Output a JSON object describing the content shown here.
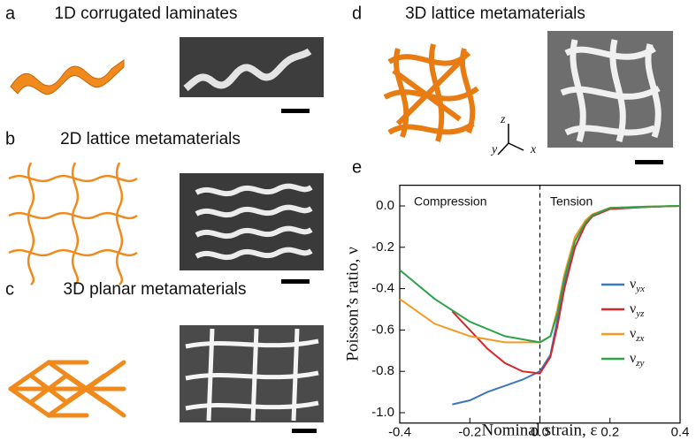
{
  "panels": [
    {
      "label": "a",
      "title": "1D corrugated laminates"
    },
    {
      "label": "b",
      "title": "2D lattice metamaterials"
    },
    {
      "label": "c",
      "title": "3D planar metamaterials"
    },
    {
      "label": "d",
      "title": "3D lattice metamaterials",
      "axes": [
        "z",
        "y",
        "x"
      ]
    }
  ],
  "chart_data": {
    "type": "line",
    "panel_label": "e",
    "x_label": "Nominal strain, ε",
    "y_label": "Poisson’s ratio, ν",
    "annotations": [
      "Compression",
      "Tension"
    ],
    "xlim": [
      -0.4,
      0.4
    ],
    "xticks": [
      -0.4,
      -0.2,
      {
        "value": 0,
        "label": "0.0"
      },
      0.2,
      0.4
    ],
    "ylim": [
      -1.05,
      0.1
    ],
    "yticks": [
      {
        "value": 0,
        "label": "0.0"
      },
      -0.2,
      -0.4,
      -0.6,
      -0.8,
      {
        "value": -1,
        "label": "-1.0"
      }
    ],
    "vlines": [
      0
    ],
    "series": [
      {
        "name": "νyx",
        "color": "#3a78c0",
        "x": [
          -0.25,
          -0.2,
          -0.15,
          -0.1,
          -0.05,
          0,
          0.03,
          0.05,
          0.07,
          0.1,
          0.13,
          0.15,
          0.2,
          0.3,
          0.4
        ],
        "values": [
          -0.96,
          -0.94,
          -0.9,
          -0.87,
          -0.84,
          -0.8,
          -0.72,
          -0.55,
          -0.38,
          -0.2,
          -0.09,
          -0.05,
          -0.015,
          -0.005,
          0
        ]
      },
      {
        "name": "νyz",
        "color": "#d8262a",
        "x": [
          -0.25,
          -0.2,
          -0.15,
          -0.1,
          -0.05,
          0,
          0.03,
          0.05,
          0.07,
          0.1,
          0.13,
          0.15,
          0.2,
          0.3,
          0.4
        ],
        "values": [
          -0.51,
          -0.6,
          -0.69,
          -0.76,
          -0.8,
          -0.81,
          -0.73,
          -0.58,
          -0.4,
          -0.2,
          -0.09,
          -0.05,
          -0.015,
          -0.005,
          0
        ]
      },
      {
        "name": "νzx",
        "color": "#f39a22",
        "x": [
          -0.4,
          -0.3,
          -0.2,
          -0.1,
          0,
          0.03,
          0.05,
          0.07,
          0.1,
          0.13,
          0.15,
          0.2,
          0.3,
          0.4
        ],
        "values": [
          -0.45,
          -0.57,
          -0.63,
          -0.66,
          -0.66,
          -0.63,
          -0.5,
          -0.33,
          -0.15,
          -0.07,
          -0.04,
          -0.01,
          -0.004,
          0
        ]
      },
      {
        "name": "νzy",
        "color": "#2ea24a",
        "x": [
          -0.4,
          -0.3,
          -0.2,
          -0.1,
          0,
          0.03,
          0.05,
          0.07,
          0.1,
          0.13,
          0.15,
          0.2,
          0.3,
          0.4
        ],
        "values": [
          -0.31,
          -0.45,
          -0.56,
          -0.63,
          -0.66,
          -0.63,
          -0.52,
          -0.35,
          -0.17,
          -0.08,
          -0.045,
          -0.01,
          -0.004,
          0
        ]
      }
    ]
  }
}
